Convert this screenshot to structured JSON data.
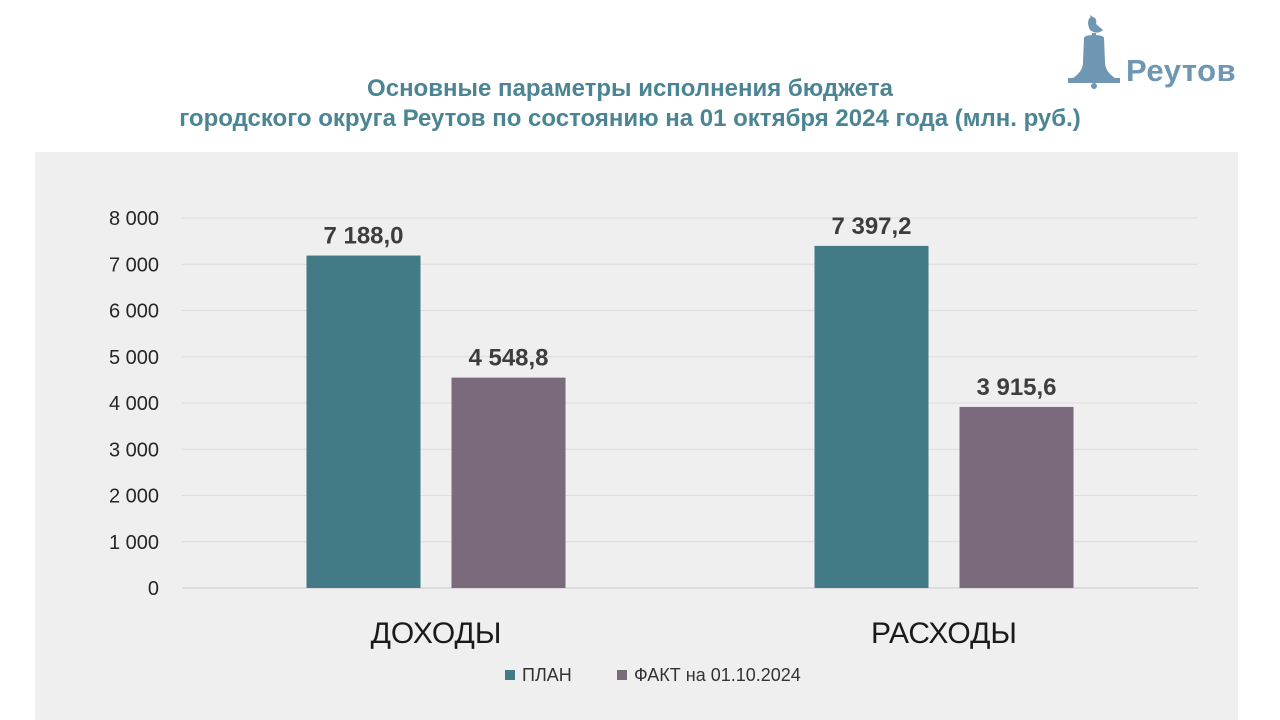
{
  "title": {
    "line1": "Основные параметры исполнения бюджета",
    "line2": "городского округа Реутов по состоянию на 01 октября 2024 года (млн. руб.)"
  },
  "logo": {
    "text": "Реутов",
    "icon": "bell-with-dove-icon"
  },
  "colors": {
    "title": "#4b8593",
    "plan": "#427a85",
    "fact": "#7a6a7b",
    "chart_bg": "#efefef",
    "logo": "#6f97b4"
  },
  "chart_data": {
    "type": "bar",
    "title": "Основные параметры исполнения бюджета городского округа Реутов по состоянию на 01 октября 2024 года (млн. руб.)",
    "xlabel": "",
    "ylabel": "",
    "categories": [
      "ДОХОДЫ",
      "РАСХОДЫ"
    ],
    "series": [
      {
        "name": "ПЛАН",
        "values": [
          7188.0,
          7397.2
        ],
        "labels": [
          "7 188,0",
          "7 397,2"
        ],
        "color": "#427a85"
      },
      {
        "name": "ФАКТ на 01.10.2024",
        "values": [
          4548.8,
          3915.6
        ],
        "labels": [
          "4 548,8",
          "3 915,6"
        ],
        "color": "#7a6a7b"
      }
    ],
    "ylim": [
      0,
      8000
    ],
    "yticks": [
      0,
      1000,
      2000,
      3000,
      4000,
      5000,
      6000,
      7000,
      8000
    ],
    "ytick_labels": [
      "0",
      "1 000",
      "2 000",
      "3 000",
      "4 000",
      "5 000",
      "6 000",
      "7 000",
      "8 000"
    ],
    "grid": true,
    "legend_position": "bottom"
  }
}
